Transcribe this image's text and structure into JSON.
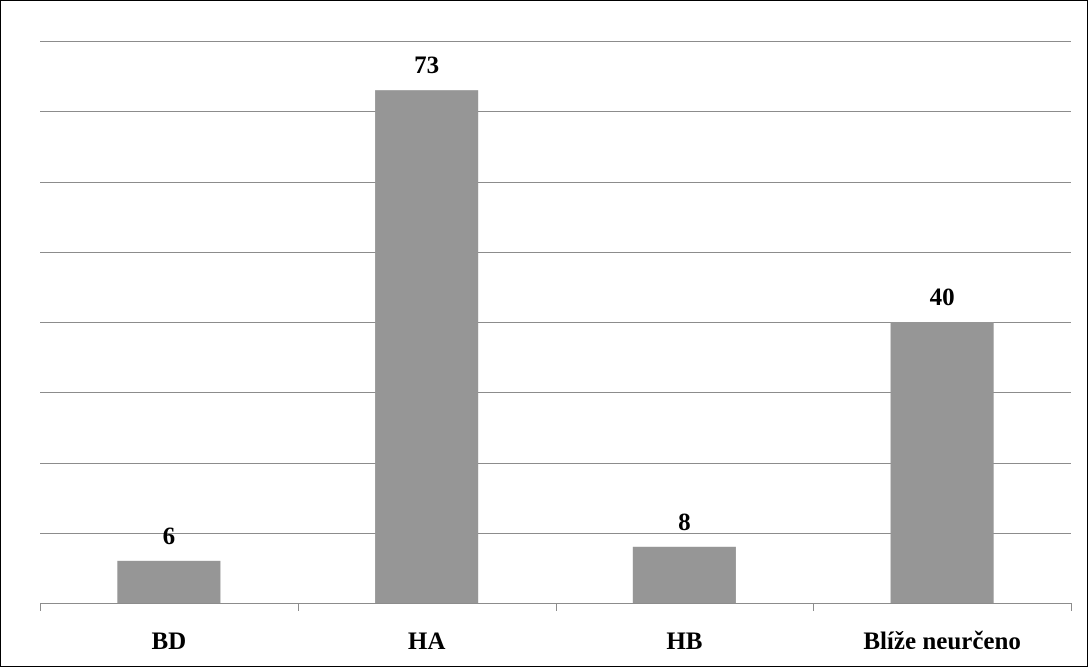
{
  "chart_data": {
    "type": "bar",
    "categories": [
      "BD",
      "HA",
      "HB",
      "Blíže neurčeno"
    ],
    "values": [
      6,
      73,
      8,
      40
    ],
    "title": "",
    "xlabel": "",
    "ylabel": "",
    "ylim": [
      0,
      80
    ],
    "y_gridline_step": 10,
    "y_tick_labels_shown": false,
    "data_labels_shown": true,
    "grid": true,
    "legend": "none",
    "bar_color": "#969696",
    "gridline_color": "#8c8c8c"
  }
}
